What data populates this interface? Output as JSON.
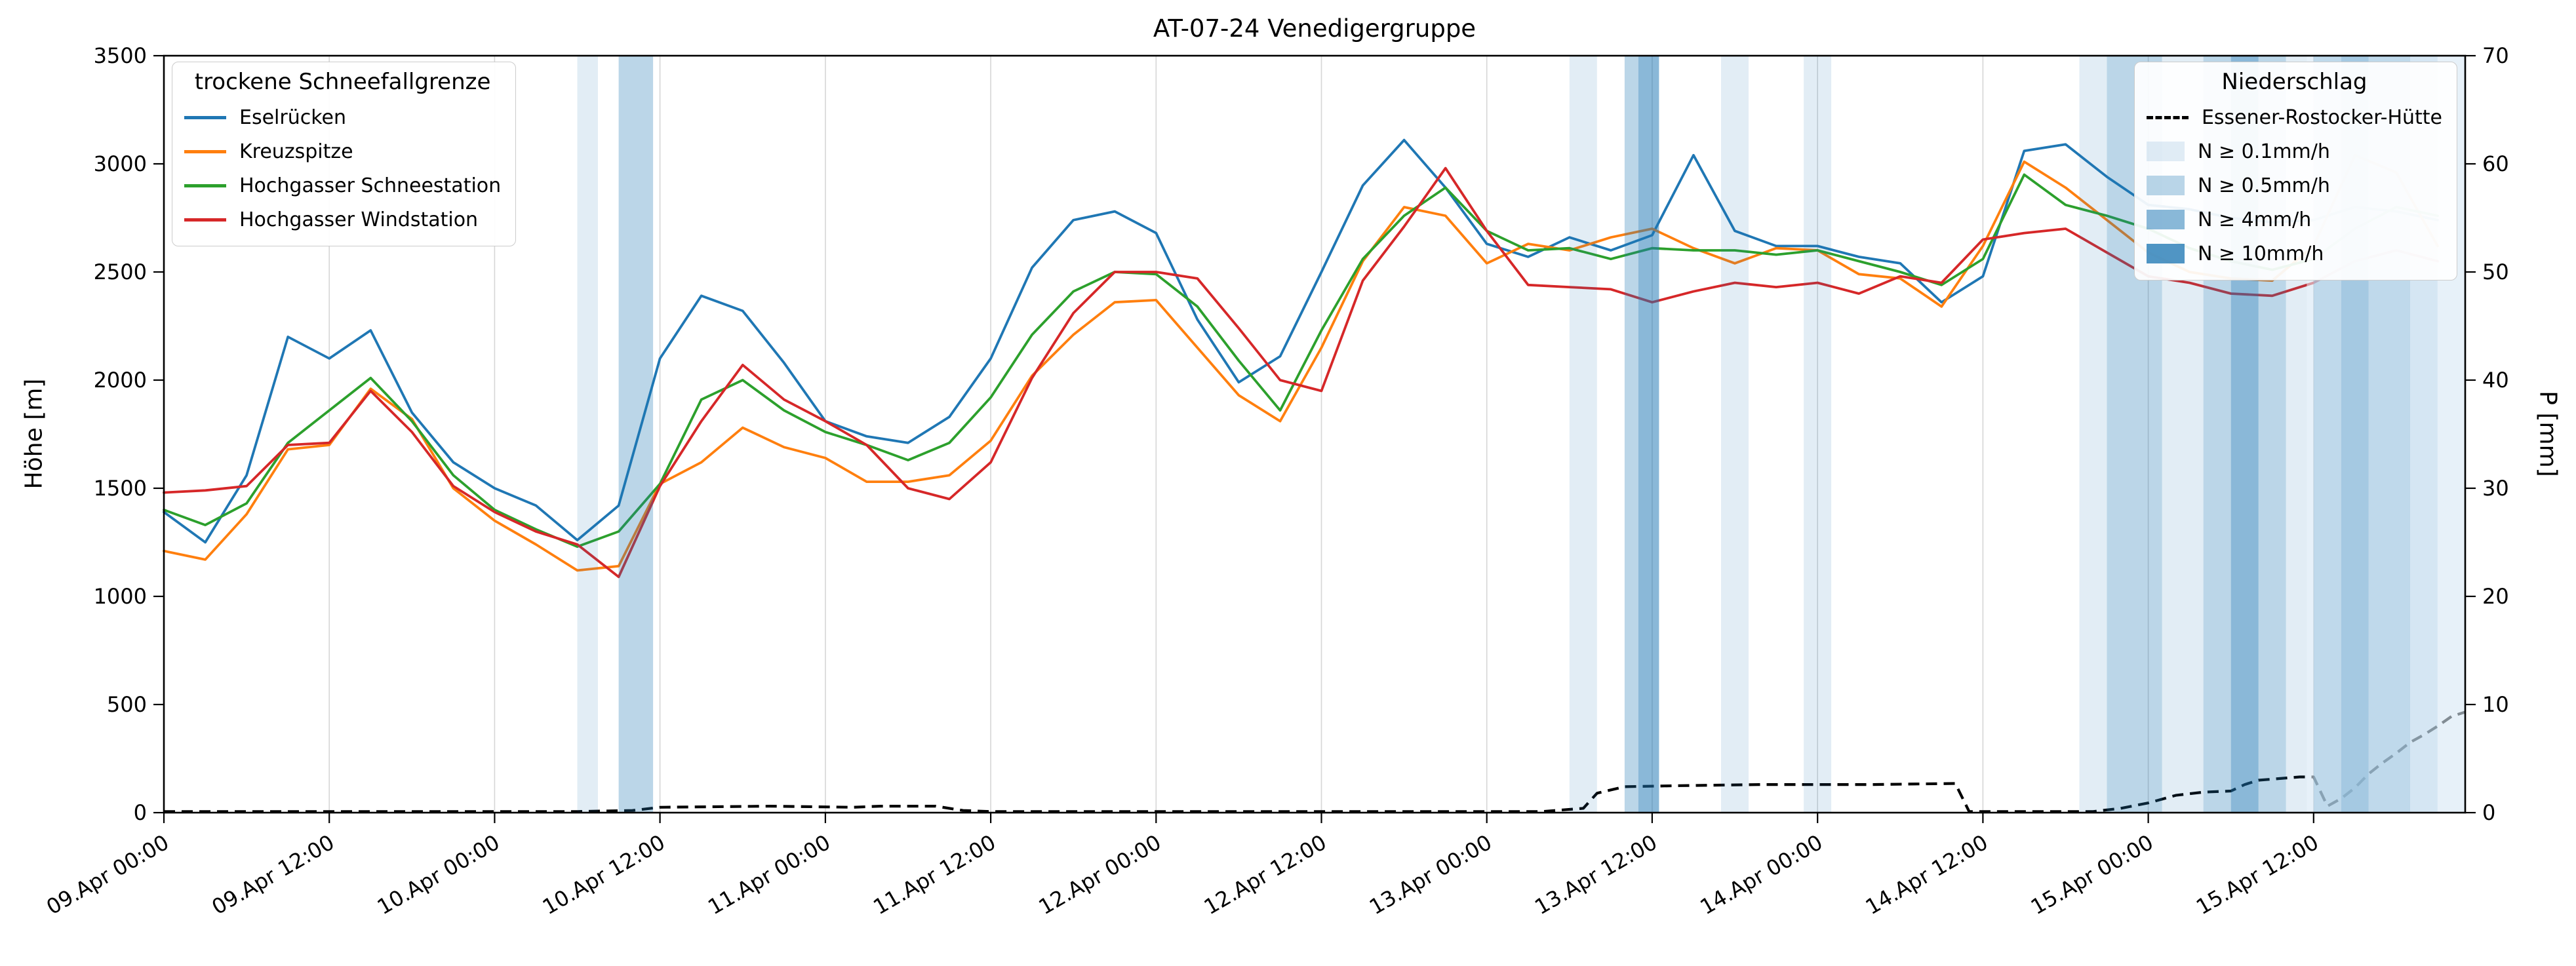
{
  "title": "AT-07-24 Venedigergruppe",
  "left_axis": {
    "label": "Höhe [m]",
    "min": 0,
    "max": 3500,
    "step": 500
  },
  "right_axis": {
    "label": "P [mm]",
    "min": 0,
    "max": 70,
    "step": 10
  },
  "x_ticks": [
    {
      "t": 0,
      "label": "09.Apr 00:00"
    },
    {
      "t": 12,
      "label": "09.Apr 12:00"
    },
    {
      "t": 24,
      "label": "10.Apr 00:00"
    },
    {
      "t": 36,
      "label": "10.Apr 12:00"
    },
    {
      "t": 48,
      "label": "11.Apr 00:00"
    },
    {
      "t": 60,
      "label": "11.Apr 12:00"
    },
    {
      "t": 72,
      "label": "12.Apr 00:00"
    },
    {
      "t": 84,
      "label": "12.Apr 12:00"
    },
    {
      "t": 96,
      "label": "13.Apr 00:00"
    },
    {
      "t": 108,
      "label": "13.Apr 12:00"
    },
    {
      "t": 120,
      "label": "14.Apr 00:00"
    },
    {
      "t": 132,
      "label": "14.Apr 12:00"
    },
    {
      "t": 144,
      "label": "15.Apr 00:00"
    },
    {
      "t": 156,
      "label": "15.Apr 12:00"
    }
  ],
  "legend_snow": {
    "title": "trockene Schneefallgrenze",
    "items": [
      {
        "label": "Eselrücken",
        "color": "#1f77b4"
      },
      {
        "label": "Kreuzspitze",
        "color": "#ff7f0e"
      },
      {
        "label": "Hochgasser Schneestation",
        "color": "#2ca02c"
      },
      {
        "label": "Hochgasser Windstation",
        "color": "#d62728"
      }
    ]
  },
  "legend_precip": {
    "title": "Niederschlag",
    "line_item": {
      "label": "Essener-Rostocker-Hütte",
      "color": "#000000"
    },
    "band_items": [
      {
        "label": "N ≥ 0.1mm/h"
      },
      {
        "label": "N ≥ 0.5mm/h"
      },
      {
        "label": "N ≥ 4mm/h"
      },
      {
        "label": "N ≥ 10mm/h"
      }
    ]
  },
  "chart_data": {
    "type": "line",
    "title": "AT-07-24 Venedigergruppe",
    "xlabel": "",
    "ylabel_left": "Höhe [m]",
    "ylabel_right": "P [mm]",
    "ylim_left": [
      0,
      3500
    ],
    "ylim_right": [
      0,
      70
    ],
    "x_domain": [
      0,
      167
    ],
    "x_unit": "hours since 09.Apr 00:00",
    "grid": "vertical",
    "x_hours": [
      0,
      3,
      6,
      9,
      12,
      15,
      18,
      21,
      24,
      27,
      30,
      33,
      36,
      39,
      42,
      45,
      48,
      51,
      54,
      57,
      60,
      63,
      66,
      69,
      72,
      75,
      78,
      81,
      84,
      87,
      90,
      93,
      96,
      99,
      102,
      105,
      108,
      111,
      114,
      117,
      120,
      123,
      126,
      129,
      132,
      135,
      138,
      141,
      144,
      147,
      150,
      153,
      156,
      159,
      162,
      165
    ],
    "series": [
      {
        "name": "Eselrücken",
        "color": "#1f77b4",
        "values": [
          1390,
          1250,
          1560,
          2200,
          2100,
          2230,
          1850,
          1620,
          1500,
          1420,
          1260,
          1420,
          2100,
          2390,
          2320,
          2080,
          1810,
          1740,
          1710,
          1830,
          2100,
          2520,
          2740,
          2780,
          2680,
          2280,
          1990,
          2110,
          2500,
          2900,
          3110,
          2890,
          2630,
          2570,
          2660,
          2600,
          2670,
          3040,
          2690,
          2620,
          2620,
          2570,
          2540,
          2360,
          2480,
          3060,
          3090,
          2940,
          2810,
          2790,
          2750,
          2730,
          2740,
          2800,
          2780,
          2740
        ]
      },
      {
        "name": "Kreuzspitze",
        "color": "#ff7f0e",
        "values": [
          1210,
          1170,
          1380,
          1680,
          1700,
          1960,
          1820,
          1500,
          1350,
          1240,
          1120,
          1140,
          1520,
          1620,
          1780,
          1690,
          1640,
          1530,
          1530,
          1560,
          1720,
          2020,
          2210,
          2360,
          2370,
          2150,
          1930,
          1810,
          2150,
          2550,
          2800,
          2760,
          2540,
          2630,
          2600,
          2660,
          2700,
          2610,
          2540,
          2610,
          2600,
          2490,
          2470,
          2340,
          2620,
          3010,
          2890,
          2740,
          2590,
          2500,
          2470,
          2460,
          2620,
          3040,
          2960,
          2620
        ]
      },
      {
        "name": "Hochgasser Schneestation",
        "color": "#2ca02c",
        "values": [
          1400,
          1330,
          1430,
          1710,
          1860,
          2010,
          1810,
          1560,
          1400,
          1310,
          1230,
          1300,
          1520,
          1910,
          2000,
          1860,
          1760,
          1700,
          1630,
          1710,
          1920,
          2210,
          2410,
          2500,
          2490,
          2340,
          2090,
          1860,
          2230,
          2560,
          2760,
          2890,
          2690,
          2600,
          2610,
          2560,
          2610,
          2600,
          2600,
          2580,
          2600,
          2550,
          2500,
          2440,
          2560,
          2950,
          2810,
          2760,
          2700,
          2610,
          2550,
          2510,
          2560,
          2700,
          2800,
          2760
        ]
      },
      {
        "name": "Hochgasser Windstation",
        "color": "#d62728",
        "values": [
          1480,
          1490,
          1510,
          1700,
          1710,
          1950,
          1760,
          1510,
          1390,
          1300,
          1240,
          1090,
          1510,
          1810,
          2070,
          1910,
          1810,
          1700,
          1500,
          1450,
          1620,
          2010,
          2310,
          2500,
          2500,
          2470,
          2240,
          2000,
          1950,
          2460,
          2710,
          2980,
          2690,
          2440,
          2430,
          2420,
          2360,
          2410,
          2450,
          2430,
          2450,
          2400,
          2480,
          2450,
          2650,
          2680,
          2700,
          2590,
          2480,
          2450,
          2400,
          2390,
          2450,
          2550,
          2600,
          2550
        ]
      }
    ],
    "precip_line": {
      "name": "Essener-Rostocker-Hütte",
      "axis": "right",
      "color": "#000000",
      "style": "dashed",
      "points": [
        [
          0,
          0.1
        ],
        [
          30,
          0.1
        ],
        [
          34,
          0.2
        ],
        [
          36,
          0.5
        ],
        [
          44,
          0.6
        ],
        [
          50,
          0.5
        ],
        [
          52,
          0.6
        ],
        [
          56,
          0.6
        ],
        [
          58,
          0.2
        ],
        [
          60,
          0.1
        ],
        [
          100,
          0.1
        ],
        [
          103,
          0.4
        ],
        [
          104,
          1.8
        ],
        [
          106,
          2.4
        ],
        [
          110,
          2.5
        ],
        [
          116,
          2.6
        ],
        [
          124,
          2.6
        ],
        [
          130,
          2.7
        ],
        [
          131,
          0.1
        ],
        [
          140,
          0.1
        ],
        [
          142,
          0.4
        ],
        [
          144,
          0.9
        ],
        [
          146,
          1.6
        ],
        [
          148,
          1.9
        ],
        [
          150,
          2.0
        ],
        [
          151,
          2.6
        ],
        [
          152,
          3.0
        ],
        [
          155,
          3.3
        ],
        [
          156,
          3.3
        ],
        [
          157,
          0.6
        ],
        [
          158,
          1.3
        ],
        [
          159,
          2.3
        ],
        [
          160,
          3.6
        ],
        [
          161,
          4.6
        ],
        [
          162,
          5.5
        ],
        [
          163,
          6.5
        ],
        [
          164,
          7.2
        ],
        [
          165,
          8.0
        ],
        [
          166,
          8.9
        ],
        [
          167,
          9.3
        ]
      ]
    },
    "band_levels": [
      "N ≥ 0.1mm/h",
      "N ≥ 0.5mm/h",
      "N ≥ 4mm/h",
      "N ≥ 10mm/h"
    ],
    "band_colors": [
      "rgba(31,119,180,0.13)",
      "rgba(31,119,180,0.30)",
      "rgba(31,119,180,0.52)",
      "rgba(31,119,180,0.78)"
    ],
    "precip_bands": [
      {
        "start": 30,
        "end": 31.5,
        "level": 1
      },
      {
        "start": 33,
        "end": 35.5,
        "level": 2
      },
      {
        "start": 102,
        "end": 104,
        "level": 1
      },
      {
        "start": 106,
        "end": 107,
        "level": 2
      },
      {
        "start": 107,
        "end": 108.5,
        "level": 3
      },
      {
        "start": 113,
        "end": 115,
        "level": 1
      },
      {
        "start": 119,
        "end": 121,
        "level": 1
      },
      {
        "start": 139,
        "end": 141,
        "level": 1
      },
      {
        "start": 141,
        "end": 145,
        "level": 2
      },
      {
        "start": 145,
        "end": 148,
        "level": 1
      },
      {
        "start": 148,
        "end": 150,
        "level": 2
      },
      {
        "start": 150,
        "end": 152,
        "level": 3
      },
      {
        "start": 152,
        "end": 154,
        "level": 2
      },
      {
        "start": 154,
        "end": 156,
        "level": 1
      },
      {
        "start": 156,
        "end": 158,
        "level": 3
      },
      {
        "start": 158,
        "end": 160,
        "level": 4
      },
      {
        "start": 160,
        "end": 163,
        "level": 3
      },
      {
        "start": 163,
        "end": 165,
        "level": 2
      },
      {
        "start": 165,
        "end": 167,
        "level": 1
      }
    ],
    "fade_overlay": {
      "start": 155.5,
      "end": 167,
      "color": "rgba(235,244,252,0.55)"
    }
  }
}
